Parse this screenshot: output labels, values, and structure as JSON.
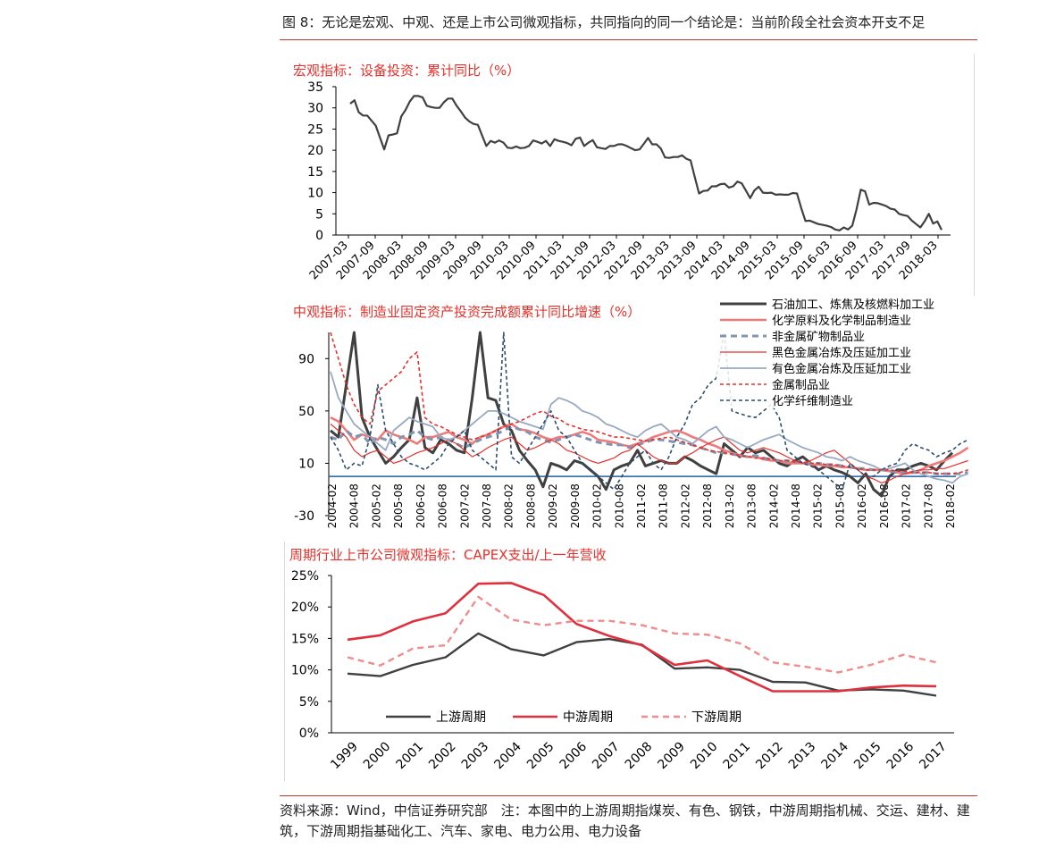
{
  "figure_title": "图 8：无论是宏观、中观、还是上市公司微观指标，共同指向的同一个结论是：当前阶段全社会资本开支不足",
  "source_note": "资料来源：Wind，中信证券研究部　注：本图中的上游周期指煤炭、有色、钢铁，中游周期指机械、交运、建材、建筑，下游周期指基础化工、汽车、家电、电力公用、电力设备",
  "chart_data": [
    {
      "type": "line",
      "title": "宏观指标：设备投资：累计同比（%）",
      "title_color": "#e8302a",
      "ylim": [
        0,
        35
      ],
      "yticks": [
        "0",
        "5",
        "10",
        "15",
        "20",
        "25",
        "30",
        "35"
      ],
      "xlabels": [
        "2007-03",
        "2007-09",
        "2008-03",
        "2008-09",
        "2009-03",
        "2009-09",
        "2010-03",
        "2010-09",
        "2011-03",
        "2011-09",
        "2012-03",
        "2012-09",
        "2013-03",
        "2013-09",
        "2014-03",
        "2014-09",
        "2015-03",
        "2015-09",
        "2016-03",
        "2016-09",
        "2017-03",
        "2017-09",
        "2018-03"
      ],
      "series": [
        {
          "color": "#404040",
          "values": [
            31,
            31.8,
            29,
            28.2,
            28.2,
            27,
            25.8,
            23,
            20.2,
            23.5,
            23.7,
            24,
            28,
            29.5,
            31.5,
            32.8,
            32.8,
            32.5,
            30.5,
            30.2,
            30,
            30,
            31.3,
            32.2,
            32.2,
            30.5,
            29.2,
            27.7,
            26.8,
            26.2,
            26,
            23.5,
            21,
            22.2,
            21.8,
            22.3,
            21.8,
            20.6,
            20.5,
            20.9,
            20.5,
            20.6,
            21,
            22.3,
            22,
            21.6,
            22.2,
            21,
            22.6,
            22.2,
            22,
            21.7,
            21.2,
            22.7,
            23,
            21,
            21.8,
            22.4,
            20.7,
            20.5,
            20.3,
            21,
            21,
            21.4,
            21.4,
            21,
            20.5,
            20,
            20.2,
            21.5,
            22.9,
            21.4,
            21.4,
            20.4,
            18.3,
            18.2,
            18.4,
            18.4,
            18.8,
            18,
            17.6,
            13.6,
            9.8,
            10.4,
            10.5,
            11.5,
            11.5,
            12,
            12.1,
            11.2,
            11.5,
            12.6,
            12.2,
            10.5,
            8.7,
            10.5,
            11.4,
            10,
            9.9,
            10,
            9.5,
            9.6,
            9.5,
            9.5,
            9.9,
            9.8,
            6.4,
            3.3,
            3.4,
            3,
            2.6,
            2.4,
            2.2,
            1.9,
            1.3,
            1.1,
            1.8,
            1.3,
            2.2,
            6,
            10.7,
            10.3,
            7.2,
            7.6,
            7.5,
            7.2,
            6.8,
            6.2,
            6,
            5,
            4.7,
            4.5,
            3.4,
            2.6,
            1.8,
            3.2,
            5,
            2.7,
            3.2,
            1.2
          ]
        }
      ]
    },
    {
      "type": "line",
      "title": "中观指标：制造业固定资产投资完成额累计同比增速（%）",
      "title_color": "#e8302a",
      "ylim": [
        -30,
        110
      ],
      "yticks": [
        "-30",
        "10",
        "50",
        "90"
      ],
      "xlabels": [
        "2004-02",
        "2004-08",
        "2005-02",
        "2005-08",
        "2006-02",
        "2006-08",
        "2007-02",
        "2007-08",
        "2008-02",
        "2008-08",
        "2009-02",
        "2009-08",
        "2010-02",
        "2010-08",
        "2011-02",
        "2011-08",
        "2012-02",
        "2012-08",
        "2013-02",
        "2013-08",
        "2014-02",
        "2014-08",
        "2015-02",
        "2015-08",
        "2016-02",
        "2016-08",
        "2017-02",
        "2017-08",
        "2018-02"
      ],
      "legend": [
        "石油加工、炼焦及核燃料加工业",
        "化学原料及化学制品制造业",
        "非金属矿物制品业",
        "黑色金属冶炼及压延加工业",
        "有色金属冶炼及压延加工业",
        "金属制品业",
        "化学纤维制造业"
      ],
      "series": [
        {
          "name": "石油加工、炼焦及核燃料加工业",
          "color": "#404040",
          "width": 3,
          "dash": "",
          "values": [
            35,
            30,
            70,
            140,
            45,
            30,
            20,
            10,
            15,
            22,
            28,
            60,
            22,
            18,
            28,
            25,
            20,
            18,
            60,
            135,
            60,
            58,
            40,
            35,
            20,
            12,
            5,
            -8,
            10,
            8,
            5,
            12,
            10,
            5,
            0,
            -10,
            5,
            8,
            10,
            20,
            8,
            10,
            12,
            10,
            10,
            15,
            12,
            8,
            5,
            2,
            25,
            20,
            15,
            22,
            18,
            20,
            15,
            10,
            8,
            12,
            15,
            10,
            5,
            8,
            5,
            3,
            0,
            -5,
            2,
            -10,
            -15,
            0,
            5,
            5,
            8,
            10,
            8,
            5,
            12,
            18
          ]
        },
        {
          "name": "化学原料及化学制品制造业",
          "color": "#f07a7a",
          "width": 2.6,
          "dash": "",
          "values": [
            45,
            42,
            35,
            28,
            32,
            30,
            28,
            35,
            32,
            30,
            28,
            25,
            30,
            30,
            32,
            34,
            30,
            28,
            25,
            30,
            32,
            35,
            38,
            40,
            36,
            35,
            33,
            30,
            28,
            30,
            30,
            32,
            34,
            32,
            28,
            27,
            26,
            24,
            23,
            25,
            27,
            30,
            32,
            34,
            35,
            33,
            30,
            28,
            25,
            23,
            20,
            18,
            16,
            15,
            15,
            13,
            12,
            12,
            10,
            10,
            10,
            9,
            9,
            8,
            8,
            7,
            7,
            6,
            5,
            5,
            5,
            4,
            3,
            2,
            3,
            5,
            8,
            10,
            12,
            15,
            18,
            22
          ]
        },
        {
          "name": "非金属矿物制品业",
          "color": "#8095b0",
          "width": 3,
          "dash": "7 5",
          "values": [
            30,
            28,
            35,
            30,
            32,
            25,
            30,
            28,
            25,
            30,
            32,
            35,
            30,
            28,
            30,
            28,
            25,
            22,
            25,
            28,
            30,
            32,
            35,
            38,
            36,
            34,
            30,
            28,
            26,
            28,
            30,
            32,
            30,
            28,
            26,
            25,
            24,
            24,
            22,
            24,
            26,
            28,
            28,
            27,
            26,
            25,
            24,
            22,
            20,
            18,
            18,
            17,
            16,
            15,
            16,
            14,
            13,
            12,
            12,
            11,
            11,
            10,
            10,
            9,
            9,
            8,
            7,
            6,
            6,
            5,
            5,
            4,
            3,
            3,
            3,
            3,
            3,
            2,
            2,
            2,
            2,
            3
          ]
        },
        {
          "name": "黑色金属冶炼及压延加工业",
          "color": "#e8302a",
          "width": 1.2,
          "dash": "",
          "values": [
            40,
            35,
            30,
            20,
            15,
            18,
            20,
            15,
            10,
            12,
            15,
            18,
            20,
            22,
            25,
            28,
            25,
            20,
            15,
            18,
            22,
            25,
            28,
            30,
            25,
            20,
            22,
            25,
            28,
            25,
            20,
            18,
            15,
            12,
            10,
            12,
            14,
            18,
            20,
            25,
            20,
            15,
            12,
            10,
            10,
            15,
            18,
            22,
            25,
            28,
            30,
            25,
            20,
            18,
            20,
            22,
            20,
            18,
            15,
            12,
            10,
            12,
            15,
            18,
            20,
            15,
            10,
            5,
            0,
            -2,
            -5,
            -3,
            0,
            2,
            4,
            5,
            5,
            6,
            6,
            8,
            10,
            12
          ]
        },
        {
          "name": "有色金属冶炼及压延加工业",
          "color": "#98aac2",
          "width": 1.8,
          "dash": "",
          "values": [
            80,
            60,
            50,
            40,
            35,
            30,
            25,
            20,
            35,
            40,
            45,
            42,
            40,
            38,
            30,
            28,
            30,
            35,
            40,
            45,
            50,
            50,
            48,
            45,
            42,
            40,
            38,
            36,
            55,
            60,
            58,
            55,
            50,
            48,
            45,
            40,
            38,
            35,
            32,
            30,
            35,
            38,
            40,
            35,
            30,
            28,
            25,
            30,
            35,
            38,
            30,
            28,
            25,
            22,
            25,
            28,
            30,
            32,
            28,
            25,
            22,
            20,
            18,
            15,
            14,
            12,
            15,
            12,
            10,
            8,
            5,
            6,
            8,
            10,
            5,
            2,
            0,
            -2,
            -3,
            -5,
            0,
            2
          ]
        },
        {
          "name": "金属制品业",
          "color": "#e8302a",
          "width": 1.6,
          "dash": "4 3",
          "values": [
            110,
            90,
            70,
            55,
            45,
            40,
            65,
            70,
            75,
            80,
            90,
            95,
            45,
            40,
            38,
            35,
            32,
            30,
            28,
            30,
            32,
            35,
            38,
            40,
            42,
            45,
            48,
            50,
            46,
            44,
            40,
            38,
            36,
            35,
            34,
            32,
            30,
            30,
            29,
            28,
            27,
            28,
            29,
            30,
            28,
            26,
            24,
            22,
            20,
            19,
            18,
            17,
            16,
            15,
            14,
            14,
            13,
            12,
            12,
            11,
            11,
            10,
            10,
            9,
            9,
            8,
            7,
            6,
            5,
            5,
            5,
            5,
            4,
            4,
            3,
            3,
            3,
            2,
            2,
            2,
            3,
            5
          ]
        },
        {
          "name": "化学纤维制造业",
          "color": "#2e4d6e",
          "width": 1.6,
          "dash": "4 3",
          "values": [
            30,
            20,
            5,
            10,
            8,
            30,
            70,
            35,
            25,
            15,
            10,
            8,
            5,
            10,
            15,
            25,
            30,
            35,
            20,
            15,
            10,
            5,
            110,
            15,
            10,
            20,
            30,
            40,
            50,
            35,
            30,
            20,
            10,
            5,
            0,
            -5,
            -10,
            0,
            10,
            15,
            20,
            10,
            5,
            15,
            30,
            40,
            55,
            60,
            70,
            75,
            140,
            50,
            48,
            46,
            45,
            50,
            55,
            45,
            20,
            15,
            10,
            8,
            5,
            0,
            -5,
            -10,
            10,
            5,
            0,
            0,
            5,
            8,
            10,
            20,
            25,
            22,
            20,
            15,
            18,
            20,
            25,
            28
          ]
        }
      ]
    },
    {
      "type": "line",
      "title": "周期行业上市公司微观指标：CAPEX支出/上一年营收",
      "title_color": "#e8302a",
      "ylim": [
        0,
        25
      ],
      "yticks": [
        "0%",
        "5%",
        "10%",
        "15%",
        "20%",
        "25%"
      ],
      "categories": [
        "1999",
        "2000",
        "2001",
        "2002",
        "2003",
        "2004",
        "2005",
        "2006",
        "2007",
        "2008",
        "2009",
        "2010",
        "2011",
        "2012",
        "2013",
        "2014",
        "2015",
        "2016",
        "2017"
      ],
      "series": [
        {
          "name": "上游周期",
          "color": "#404040",
          "width": 2.4,
          "dash": "",
          "values": [
            9.4,
            9.0,
            10.8,
            12.0,
            15.8,
            13.3,
            12.3,
            14.4,
            14.9,
            14.0,
            10.2,
            10.4,
            10.0,
            8.1,
            8.0,
            6.7,
            6.9,
            6.7,
            5.9
          ]
        },
        {
          "name": "中游周期",
          "color": "#e0303e",
          "width": 2.6,
          "dash": "",
          "values": [
            14.8,
            15.5,
            17.7,
            19.0,
            23.7,
            23.8,
            21.9,
            17.3,
            15.4,
            13.9,
            10.8,
            11.5,
            9.0,
            6.6,
            6.6,
            6.6,
            7.2,
            7.5,
            7.4
          ]
        },
        {
          "name": "下游周期",
          "color": "#f08c8c",
          "width": 2.4,
          "dash": "7 5",
          "values": [
            12.0,
            10.7,
            13.4,
            13.9,
            21.6,
            18.0,
            17.1,
            17.8,
            17.8,
            17.1,
            15.8,
            15.6,
            14.2,
            11.2,
            10.5,
            9.6,
            10.8,
            12.4,
            11.2
          ]
        }
      ]
    }
  ]
}
